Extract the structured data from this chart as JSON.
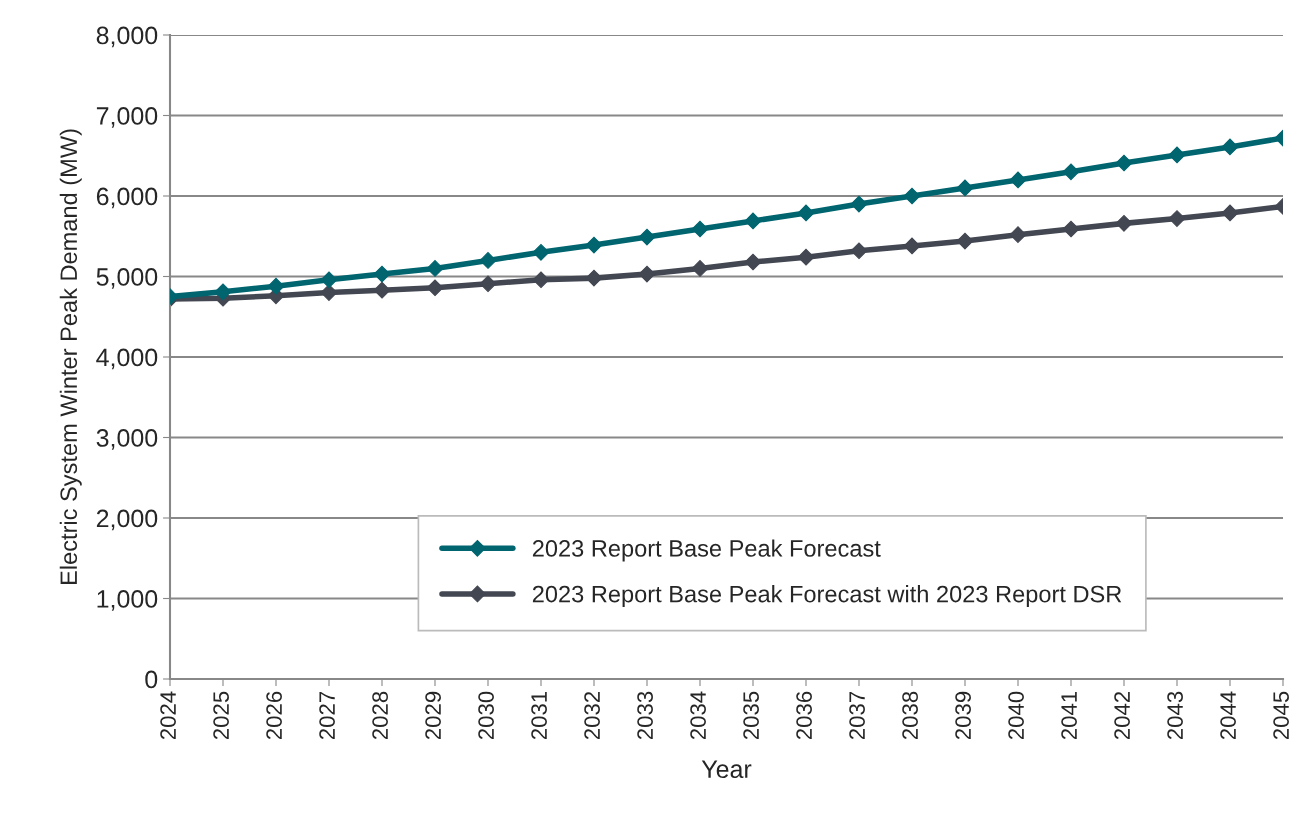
{
  "chart_data": {
    "type": "line",
    "xlabel": "Year",
    "ylabel": "Electric System Winter Peak Demand (MW)",
    "categories": [
      "2024",
      "2025",
      "2026",
      "2027",
      "2028",
      "2029",
      "2030",
      "2031",
      "2032",
      "2033",
      "2034",
      "2035",
      "2036",
      "2037",
      "2038",
      "2039",
      "2040",
      "2041",
      "2042",
      "2043",
      "2044",
      "2045"
    ],
    "series": [
      {
        "name": "2023 Report Base Peak Forecast",
        "color": "#00656f",
        "values": [
          4750,
          4810,
          4880,
          4960,
          5030,
          5100,
          5200,
          5300,
          5390,
          5490,
          5590,
          5690,
          5790,
          5900,
          6000,
          6100,
          6200,
          6300,
          6410,
          6510,
          6610,
          6720
        ]
      },
      {
        "name": "2023 Report Base Peak Forecast with 2023 Report DSR",
        "color": "#434752",
        "values": [
          4720,
          4730,
          4760,
          4800,
          4830,
          4860,
          4910,
          4960,
          4980,
          5030,
          5100,
          5180,
          5240,
          5320,
          5380,
          5440,
          5520,
          5590,
          5660,
          5720,
          5790,
          5870
        ]
      }
    ],
    "ylim": [
      0,
      8000
    ],
    "yticks": [
      {
        "value": 0,
        "label": "0"
      },
      {
        "value": 1000,
        "label": "1,000"
      },
      {
        "value": 2000,
        "label": "2,000"
      },
      {
        "value": 3000,
        "label": "3,000"
      },
      {
        "value": 4000,
        "label": "4,000"
      },
      {
        "value": 5000,
        "label": "5,000"
      },
      {
        "value": 6000,
        "label": "6,000"
      },
      {
        "value": 7000,
        "label": "7,000"
      },
      {
        "value": 8000,
        "label": "8,000"
      }
    ],
    "grid": "y",
    "legend": "bottom",
    "marker": "diamond",
    "line_style": "solid"
  }
}
